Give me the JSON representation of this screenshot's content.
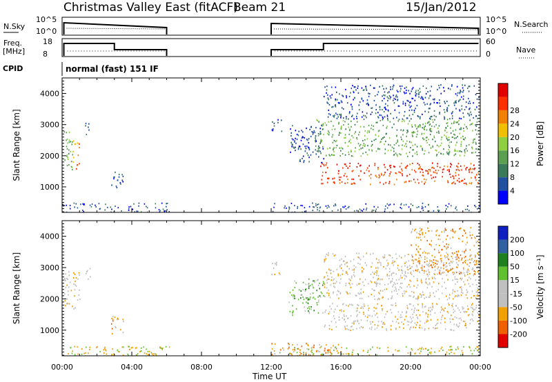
{
  "header": {
    "station": "Christmas Valley East (fitACF)",
    "beam": "Beam 21",
    "date": "15/Jan/2012"
  },
  "nsky_panel": {
    "left_label": "N.Sky",
    "right_label": "N.Search",
    "left_ticks": [
      "10^5",
      "10^0"
    ],
    "right_ticks": [
      "10^5",
      "10^0"
    ]
  },
  "freq_panel": {
    "left_label": "Freq.",
    "left_unit": "[MHz]",
    "left_ticks": [
      "18",
      "8"
    ],
    "right_label": "Nave",
    "right_ticks": [
      "60",
      "0"
    ]
  },
  "cpid_panel": {
    "label": "CPID",
    "mode": "normal (fast) 151 IF"
  },
  "colors": {
    "power": [
      "#0000ff",
      "#2050a0",
      "#3a7a5a",
      "#5aa050",
      "#90d040",
      "#f0c000",
      "#f08000",
      "#ff3000",
      "#e00000"
    ],
    "velocity": [
      "#e00000",
      "#f06000",
      "#f0a000",
      "#c0c0c0",
      "#c0c0c0",
      "#60c030",
      "#208020",
      "#3060a0",
      "#1020c0"
    ]
  },
  "chart_data": [
    {
      "type": "heatmap",
      "panel": "power",
      "ylabel": "Slant Range [km]",
      "ylim": [
        180,
        4500
      ],
      "yticks": [
        "1000",
        "2000",
        "3000",
        "4000"
      ],
      "colorbar_label": "Power [dB]",
      "colorbar_ticks": [
        "4",
        "8",
        "12",
        "16",
        "20",
        "24",
        "28"
      ],
      "regions": [
        {
          "t0": 0.1,
          "t1": 0.6,
          "r0": 1500,
          "r1": 2900,
          "level": 3
        },
        {
          "t0": 0.6,
          "t1": 1.0,
          "r0": 1600,
          "r1": 2500,
          "level": 6
        },
        {
          "t0": 1.3,
          "t1": 1.6,
          "r0": 2600,
          "r1": 3100,
          "level": 2
        },
        {
          "t0": 2.8,
          "t1": 3.5,
          "r0": 900,
          "r1": 1500,
          "level": 1
        },
        {
          "t0": 12.0,
          "t1": 12.6,
          "r0": 2800,
          "r1": 3200,
          "level": 1
        },
        {
          "t0": 14.8,
          "t1": 23.9,
          "r0": 1100,
          "r1": 1800,
          "level": 7
        },
        {
          "t0": 14.5,
          "t1": 23.9,
          "r0": 2000,
          "r1": 3200,
          "level": 3
        },
        {
          "t0": 13.0,
          "t1": 15.0,
          "r0": 1800,
          "r1": 3000,
          "level": 1
        },
        {
          "t0": 15.0,
          "t1": 23.9,
          "r0": 3200,
          "r1": 4300,
          "level": 1
        }
      ]
    },
    {
      "type": "heatmap",
      "panel": "velocity",
      "ylabel": "Slant Range [km]",
      "ylim": [
        180,
        4500
      ],
      "yticks": [
        "1000",
        "2000",
        "3000",
        "4000"
      ],
      "colorbar_label": "Velocity [m s⁻¹]",
      "colorbar_ticks": [
        "-200",
        "-100",
        "-50",
        "-15",
        "15",
        "50",
        "100",
        "200"
      ],
      "regions": [
        {
          "t0": 0.1,
          "t1": 1.0,
          "r0": 1700,
          "r1": 2900,
          "level": 3
        },
        {
          "t0": 1.3,
          "t1": 1.6,
          "r0": 2600,
          "r1": 3100,
          "level": 3
        },
        {
          "t0": 2.8,
          "t1": 3.5,
          "r0": 900,
          "r1": 1500,
          "level": 2
        },
        {
          "t0": 12.0,
          "t1": 12.6,
          "r0": 2800,
          "r1": 3200,
          "level": 3
        },
        {
          "t0": 13.0,
          "t1": 15.0,
          "r0": 1500,
          "r1": 2700,
          "level": 5
        },
        {
          "t0": 15.0,
          "t1": 23.9,
          "r0": 1000,
          "r1": 1900,
          "level": 3
        },
        {
          "t0": 15.0,
          "t1": 23.9,
          "r0": 2000,
          "r1": 3500,
          "level": 3
        },
        {
          "t0": 20.0,
          "t1": 23.9,
          "r0": 2800,
          "r1": 4300,
          "level": 2
        },
        {
          "t0": 12.0,
          "t1": 16.0,
          "r0": 200,
          "r1": 600,
          "level": 2
        }
      ]
    }
  ],
  "time_axis": {
    "label": "Time UT",
    "xlim": [
      0,
      24
    ],
    "ticks": [
      "00:00",
      "04:00",
      "08:00",
      "12:00",
      "16:00",
      "20:00",
      "00:00"
    ]
  }
}
